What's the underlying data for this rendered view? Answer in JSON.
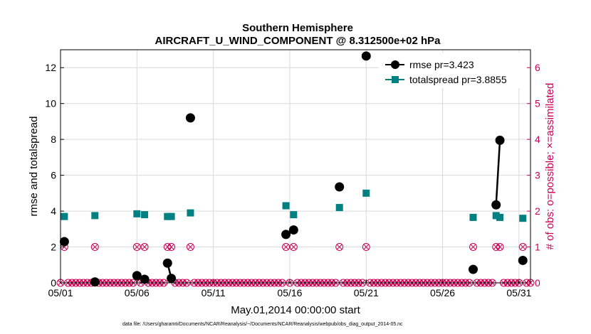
{
  "chart_data": {
    "type": "line",
    "title_line1": "Southern Hemisphere",
    "title_line2": "AIRCRAFT_U_WIND_COMPONENT @ 8.312500e+02 hPa",
    "xlabel": "May.01,2014 00:00:00 start",
    "ylabel": "rmse and totalspread",
    "ylabel_right": "# of obs: o=possible; ×=assimilated",
    "footnote": "data file: /Users/gharamti/Documents/NCAR/Reanalysis/~/Documents/NCAR/Reanalysis/webpub/obs_diag_output_2014-05.nc",
    "xlim": [
      1,
      31.75
    ],
    "ylim": [
      0,
      13
    ],
    "ylim_right": [
      0,
      6.5
    ],
    "x_ticks": [
      1,
      6,
      11,
      16,
      21,
      26,
      31
    ],
    "x_tick_labels": [
      "05/01",
      "05/06",
      "05/11",
      "05/16",
      "05/21",
      "05/26",
      "05/31"
    ],
    "y_ticks": [
      0,
      2,
      4,
      6,
      8,
      10,
      12
    ],
    "y_ticks_right": [
      0,
      1,
      2,
      3,
      4,
      5,
      6
    ],
    "grid": true,
    "legend_position": "top-right",
    "colors": {
      "rmse": "#000000",
      "totalspread": "#008080",
      "obs": "#cc0055"
    },
    "series": [
      {
        "name": "rmse pr=3.423",
        "points": [
          [
            1.25,
            2.3
          ],
          [
            3.25,
            0.05
          ],
          [
            6.0,
            0.4
          ],
          [
            6.5,
            0.2
          ],
          [
            8.0,
            1.1
          ],
          [
            8.25,
            0.25
          ],
          [
            9.5,
            9.2
          ],
          [
            15.75,
            2.7
          ],
          [
            16.25,
            2.95
          ],
          [
            19.25,
            5.35
          ],
          [
            21.0,
            12.65
          ],
          [
            28.0,
            0.75
          ],
          [
            29.5,
            4.35
          ],
          [
            29.75,
            7.95
          ],
          [
            31.25,
            1.25
          ]
        ]
      },
      {
        "name": "totalspread pr=3.8855",
        "points": [
          [
            1.25,
            3.7
          ],
          [
            3.25,
            3.75
          ],
          [
            6.0,
            3.85
          ],
          [
            6.5,
            3.8
          ],
          [
            8.0,
            3.7
          ],
          [
            8.25,
            3.7
          ],
          [
            9.5,
            3.9
          ],
          [
            15.75,
            4.3
          ],
          [
            16.25,
            3.8
          ],
          [
            19.25,
            4.2
          ],
          [
            21.0,
            5.0
          ],
          [
            28.0,
            3.65
          ],
          [
            29.5,
            3.75
          ],
          [
            29.75,
            3.65
          ],
          [
            31.25,
            3.6
          ]
        ]
      }
    ],
    "obs_count": {
      "step_days": 0.25,
      "start_x": 1.0,
      "end_x": 31.75,
      "ones_at_x": [
        1.25,
        3.25,
        6.0,
        6.5,
        8.0,
        8.25,
        9.5,
        15.75,
        16.25,
        19.25,
        21.0,
        28.0,
        29.5,
        29.75,
        31.25
      ]
    }
  }
}
